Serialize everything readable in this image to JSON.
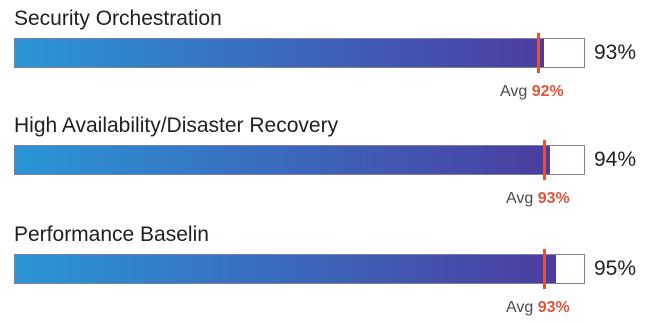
{
  "chart_data": {
    "type": "bar",
    "orientation": "horizontal",
    "xlim": [
      0,
      100
    ],
    "unit": "%",
    "avg_prefix": "Avg",
    "categories": [
      "Security Orchestration",
      "High Availability/Disaster Recovery",
      "Performance Baselin"
    ],
    "values": [
      93,
      94,
      95
    ],
    "value_labels": [
      "93%",
      "94%",
      "95%"
    ],
    "averages": [
      92,
      93,
      93
    ],
    "average_labels": [
      "92%",
      "93%",
      "93%"
    ],
    "colors": {
      "bar_start": "#2a96d6",
      "bar_end": "#4b3da0",
      "average_marker": "#e2543a",
      "track_border": "#7d7fa0"
    }
  }
}
